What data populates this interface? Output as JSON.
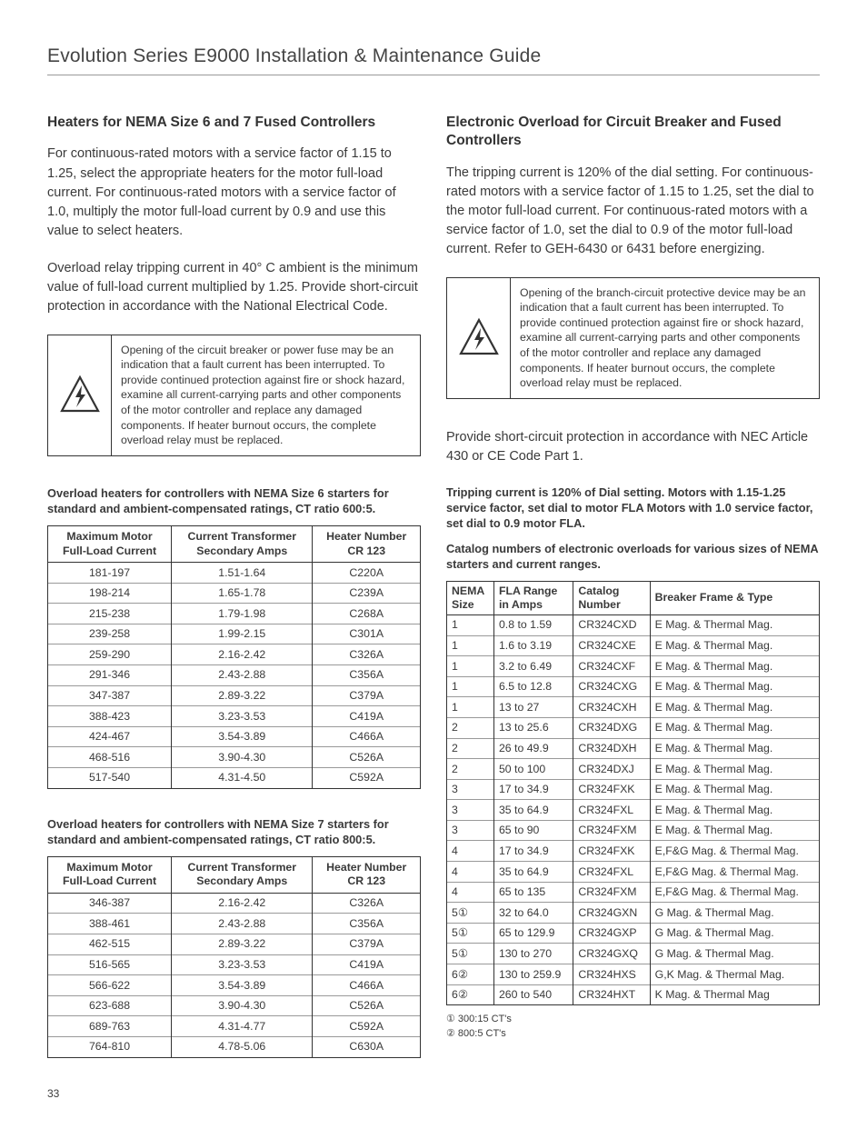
{
  "docTitle": "Evolution Series E9000 Installation & Maintenance Guide",
  "pageNumber": "33",
  "left": {
    "heading1": "Heaters for NEMA Size 6 and 7 Fused Controllers",
    "p1": "For continuous-rated motors with a service factor of 1.15 to 1.25, select the appropriate heaters for the motor full-load current. For continuous-rated motors with a service factor of 1.0, multiply the motor full-load current by 0.9 and use this value to select heaters.",
    "p2": "Overload relay tripping current in 40° C ambient is the minimum value of full-load current multiplied by 1.25. Provide short-circuit protection in accordance with the National Electrical Code.",
    "warnText": "Opening of the circuit breaker or power fuse may be an indication that a fault current has been interrupted. To provide continued protection against fire or shock hazard, examine all current-carrying parts and other components of the motor controller and replace any damaged components. If heater burnout occurs, the complete overload relay must be replaced.",
    "table1": {
      "caption": "Overload heaters for controllers with NEMA Size 6 starters for standard and ambient-compensated ratings, CT ratio 600:5.",
      "headers": [
        "Maximum Motor\nFull-Load Current",
        "Current Transformer\nSecondary Amps",
        "Heater Number\nCR 123"
      ],
      "rows": [
        [
          "181-197",
          "1.51-1.64",
          "C220A"
        ],
        [
          "198-214",
          "1.65-1.78",
          "C239A"
        ],
        [
          "215-238",
          "1.79-1.98",
          "C268A"
        ],
        [
          "239-258",
          "1.99-2.15",
          "C301A"
        ],
        [
          "259-290",
          "2.16-2.42",
          "C326A"
        ],
        [
          "291-346",
          "2.43-2.88",
          "C356A"
        ],
        [
          "347-387",
          "2.89-3.22",
          "C379A"
        ],
        [
          "388-423",
          "3.23-3.53",
          "C419A"
        ],
        [
          "424-467",
          "3.54-3.89",
          "C466A"
        ],
        [
          "468-516",
          "3.90-4.30",
          "C526A"
        ],
        [
          "517-540",
          "4.31-4.50",
          "C592A"
        ]
      ]
    },
    "table2": {
      "caption": "Overload heaters for controllers with NEMA Size 7 starters for standard and ambient-compensated ratings, CT ratio 800:5.",
      "headers": [
        "Maximum Motor\nFull-Load Current",
        "Current Transformer\nSecondary Amps",
        "Heater Number\nCR 123"
      ],
      "rows": [
        [
          "346-387",
          "2.16-2.42",
          "C326A"
        ],
        [
          "388-461",
          "2.43-2.88",
          "C356A"
        ],
        [
          "462-515",
          "2.89-3.22",
          "C379A"
        ],
        [
          "516-565",
          "3.23-3.53",
          "C419A"
        ],
        [
          "566-622",
          "3.54-3.89",
          "C466A"
        ],
        [
          "623-688",
          "3.90-4.30",
          "C526A"
        ],
        [
          "689-763",
          "4.31-4.77",
          "C592A"
        ],
        [
          "764-810",
          "4.78-5.06",
          "C630A"
        ]
      ]
    }
  },
  "right": {
    "heading1": "Electronic Overload for Circuit Breaker and Fused Controllers",
    "p1": "The tripping current is 120% of the dial setting. For continuous-rated motors with a service factor of 1.15 to 1.25, set the dial to the motor full-load current. For continuous-rated motors with a service factor of 1.0, set the dial to 0.9 of the motor full-load current. Refer to GEH-6430 or 6431 before energizing.",
    "warnText": "Opening of the branch-circuit protective device may be an indication that a fault current has been interrupted. To provide continued protection against fire or shock hazard, examine all current-carrying parts and other components of the motor controller and replace any damaged components. If heater burnout occurs, the complete overload relay must be replaced.",
    "p2": "Provide short-circuit protection in accordance with NEC Article 430 or CE Code Part 1.",
    "boldPara": "Tripping current is 120% of Dial setting. Motors with 1.15-1.25 service factor, set dial to motor FLA Motors with 1.0 service factor, set dial to 0.9 motor FLA.",
    "table3": {
      "caption": "Catalog numbers of electronic overloads for various sizes of NEMA starters and current ranges.",
      "headers": [
        "NEMA\nSize",
        "FLA Range\nin Amps",
        "Catalog\nNumber",
        "Breaker Frame & Type"
      ],
      "rows": [
        [
          "1",
          "0.8 to 1.59",
          "CR324CXD",
          "E Mag. & Thermal Mag."
        ],
        [
          "1",
          "1.6 to 3.19",
          "CR324CXE",
          "E Mag. & Thermal Mag."
        ],
        [
          "1",
          "3.2 to 6.49",
          "CR324CXF",
          "E Mag. & Thermal Mag."
        ],
        [
          "1",
          "6.5 to 12.8",
          "CR324CXG",
          "E Mag. & Thermal Mag."
        ],
        [
          "1",
          "13 to 27",
          "CR324CXH",
          "E Mag. & Thermal Mag."
        ],
        [
          "2",
          "13 to 25.6",
          "CR324DXG",
          "E Mag. & Thermal Mag."
        ],
        [
          "2",
          "26 to 49.9",
          "CR324DXH",
          "E Mag. & Thermal Mag."
        ],
        [
          "2",
          "50 to 100",
          "CR324DXJ",
          "E Mag. & Thermal Mag."
        ],
        [
          "3",
          "17 to 34.9",
          "CR324FXK",
          "E Mag. & Thermal Mag."
        ],
        [
          "3",
          "35 to 64.9",
          "CR324FXL",
          "E Mag. & Thermal Mag."
        ],
        [
          "3",
          "65 to 90",
          "CR324FXM",
          "E Mag. & Thermal Mag."
        ],
        [
          "4",
          "17 to 34.9",
          "CR324FXK",
          "E,F&G Mag. & Thermal Mag."
        ],
        [
          "4",
          "35 to 64.9",
          "CR324FXL",
          "E,F&G Mag. & Thermal Mag."
        ],
        [
          "4",
          "65 to 135",
          "CR324FXM",
          "E,F&G Mag. & Thermal Mag."
        ],
        [
          "5①",
          "32 to 64.0",
          "CR324GXN",
          "G Mag. & Thermal Mag."
        ],
        [
          "5①",
          "65 to 129.9",
          "CR324GXP",
          "G Mag. & Thermal Mag."
        ],
        [
          "5①",
          "130 to 270",
          "CR324GXQ",
          "G Mag. & Thermal Mag."
        ],
        [
          "6②",
          "130 to 259.9",
          "CR324HXS",
          "G,K Mag. & Thermal Mag."
        ],
        [
          "6②",
          "260 to 540",
          "CR324HXT",
          "K Mag. & Thermal Mag"
        ]
      ],
      "footnotes": [
        "① 300:15 CT's",
        "② 800:5 CT's"
      ]
    }
  }
}
